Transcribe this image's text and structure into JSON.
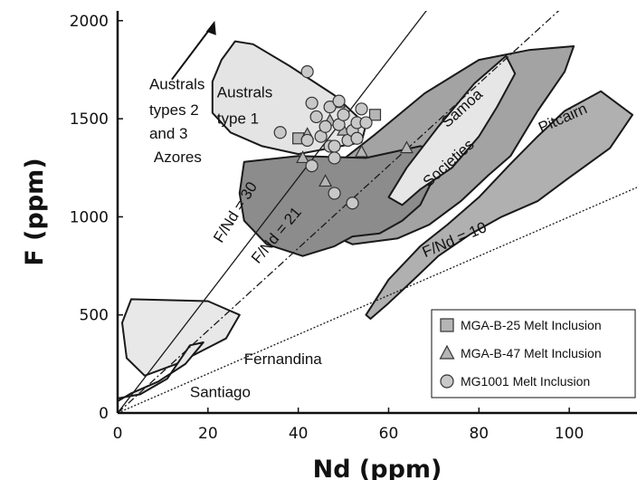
{
  "chart_data": {
    "type": "scatter",
    "xlabel": "Nd (ppm)",
    "ylabel": "F (ppm)",
    "xlim": [
      0,
      115
    ],
    "ylim": [
      0,
      2050
    ],
    "xticks": [
      0,
      20,
      40,
      60,
      80,
      100
    ],
    "yticks": [
      0,
      500,
      1000,
      1500,
      2000
    ],
    "grid": false,
    "legend_position": "bottom-right",
    "series": [
      {
        "name": "MGA-B-25 Melt Inclusion",
        "marker": "square",
        "color": "#b5b5b5",
        "points": [
          [
            40,
            1400
          ],
          [
            57,
            1520
          ]
        ]
      },
      {
        "name": "MGA-B-47 Melt Inclusion",
        "marker": "triangle",
        "color": "#b5b5b5",
        "points": [
          [
            41,
            1300
          ],
          [
            42,
            1420
          ],
          [
            46,
            1180
          ],
          [
            47,
            1490
          ],
          [
            49,
            1580
          ],
          [
            50,
            1440
          ],
          [
            54,
            1330
          ],
          [
            64,
            1350
          ]
        ]
      },
      {
        "name": "MG1001 Melt Inclusion",
        "marker": "circle",
        "color": "#c8c8c8",
        "points": [
          [
            42,
            1740
          ],
          [
            43,
            1580
          ],
          [
            36,
            1430
          ],
          [
            43,
            1260
          ],
          [
            42,
            1390
          ],
          [
            44,
            1510
          ],
          [
            45,
            1410
          ],
          [
            46,
            1460
          ],
          [
            47,
            1560
          ],
          [
            47,
            1360
          ],
          [
            48,
            1300
          ],
          [
            48,
            1120
          ],
          [
            49,
            1470
          ],
          [
            49,
            1590
          ],
          [
            50,
            1520
          ],
          [
            51,
            1390
          ],
          [
            52,
            1440
          ],
          [
            53,
            1480
          ],
          [
            53,
            1400
          ],
          [
            54,
            1550
          ],
          [
            55,
            1480
          ],
          [
            48,
            1360
          ],
          [
            52,
            1070
          ]
        ]
      }
    ],
    "reference_lines": [
      {
        "label": "F/Nd = 30",
        "slope": 30
      },
      {
        "label": "F/Nd = 21",
        "slope": 21
      },
      {
        "label": "F/Nd = 10",
        "slope": 10
      }
    ],
    "fields": [
      {
        "label": "Australs type 1",
        "color": "#e4e4e4",
        "polygon": [
          [
            21,
            1690
          ],
          [
            23,
            1800
          ],
          [
            26,
            1895
          ],
          [
            30,
            1880
          ],
          [
            38,
            1770
          ],
          [
            48,
            1620
          ],
          [
            55,
            1470
          ],
          [
            54,
            1380
          ],
          [
            40,
            1320
          ],
          [
            32,
            1360
          ],
          [
            25,
            1430
          ],
          [
            21,
            1530
          ]
        ]
      },
      {
        "label": "Azores",
        "color": "#8c8c8c",
        "polygon": [
          [
            28,
            1280
          ],
          [
            40,
            1310
          ],
          [
            55,
            1300
          ],
          [
            67,
            1360
          ],
          [
            72,
            1335
          ],
          [
            70,
            1200
          ],
          [
            67,
            1060
          ],
          [
            63,
            980
          ],
          [
            58,
            915
          ],
          [
            52,
            900
          ],
          [
            48,
            850
          ],
          [
            41,
            800
          ],
          [
            33,
            860
          ],
          [
            28,
            980
          ],
          [
            27,
            1120
          ]
        ]
      },
      {
        "label": "Samoa",
        "color": "#a3a3a3",
        "polygon": [
          [
            47,
            1240
          ],
          [
            57,
            1420
          ],
          [
            68,
            1630
          ],
          [
            80,
            1800
          ],
          [
            91,
            1850
          ],
          [
            101,
            1870
          ],
          [
            99,
            1740
          ],
          [
            93,
            1540
          ],
          [
            87,
            1310
          ],
          [
            82,
            1210
          ],
          [
            76,
            1080
          ],
          [
            69,
            960
          ],
          [
            62,
            890
          ],
          [
            52,
            860
          ],
          [
            46,
            920
          ],
          [
            45,
            1080
          ]
        ]
      },
      {
        "label": "Societies",
        "color": "#e6e6e6",
        "polygon": [
          [
            60,
            1100
          ],
          [
            64,
            1250
          ],
          [
            71,
            1460
          ],
          [
            79,
            1680
          ],
          [
            86,
            1820
          ],
          [
            88,
            1730
          ],
          [
            84,
            1560
          ],
          [
            80,
            1410
          ],
          [
            74,
            1250
          ],
          [
            67,
            1140
          ],
          [
            63,
            1060
          ]
        ]
      },
      {
        "label": "Pitcairn",
        "color": "#b0b0b0",
        "polygon": [
          [
            55,
            500
          ],
          [
            60,
            680
          ],
          [
            67,
            850
          ],
          [
            73,
            960
          ],
          [
            80,
            1100
          ],
          [
            87,
            1270
          ],
          [
            93,
            1410
          ],
          [
            99,
            1540
          ],
          [
            107,
            1640
          ],
          [
            114,
            1520
          ],
          [
            109,
            1350
          ],
          [
            100,
            1200
          ],
          [
            93,
            1080
          ],
          [
            85,
            1000
          ],
          [
            78,
            910
          ],
          [
            71,
            800
          ],
          [
            66,
            690
          ],
          [
            60,
            560
          ],
          [
            56,
            480
          ]
        ]
      },
      {
        "label": "Fernandina",
        "color": "#e8e8e8",
        "polygon": [
          [
            3,
            580
          ],
          [
            20,
            570
          ],
          [
            27,
            500
          ],
          [
            24,
            380
          ],
          [
            13,
            250
          ],
          [
            6,
            190
          ],
          [
            2,
            280
          ],
          [
            1,
            460
          ]
        ]
      },
      {
        "label": "Santiago",
        "color": "#e8e8e8",
        "polygon": [
          [
            -1,
            70
          ],
          [
            5,
            95
          ],
          [
            11,
            175
          ],
          [
            16,
            345
          ],
          [
            19,
            360
          ],
          [
            15,
            250
          ],
          [
            9,
            160
          ],
          [
            3,
            100
          ],
          [
            0,
            60
          ]
        ]
      }
    ],
    "annotations": [
      {
        "text": "Australs",
        "group": "austral1"
      },
      {
        "text": "type 1",
        "group": "austral1"
      },
      {
        "text": "Australs",
        "group": "austral23"
      },
      {
        "text": "types 2",
        "group": "austral23"
      },
      {
        "text": "and 3",
        "group": "austral23"
      },
      {
        "text": "Azores"
      },
      {
        "text": "Samoa"
      },
      {
        "text": "Pitcairn"
      },
      {
        "text": "Societies"
      },
      {
        "text": "Fernandina"
      },
      {
        "text": "Santiago"
      },
      {
        "text": "F/Nd = 30"
      },
      {
        "text": "F/Nd = 21"
      },
      {
        "text": "F/Nd = 10"
      }
    ]
  }
}
